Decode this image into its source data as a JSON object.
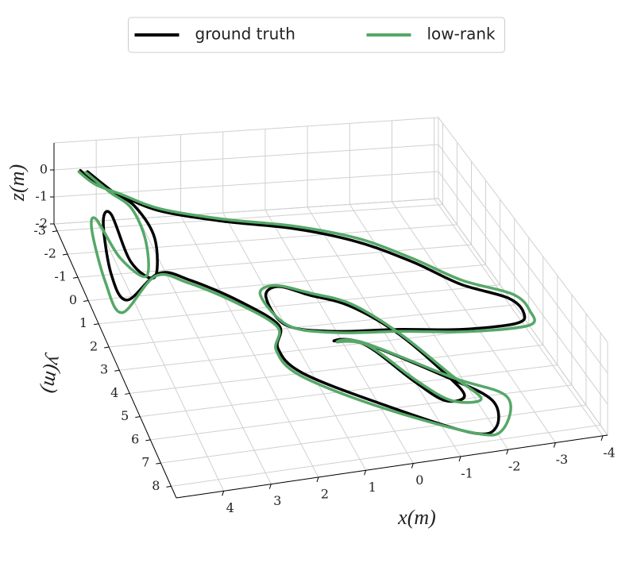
{
  "chart_data": {
    "type": "line3d",
    "x_label": "x(m)",
    "y_label": "y(m)",
    "z_label": "z(m)",
    "xlim": [
      5.0,
      -4.1
    ],
    "ylim": [
      -3.3,
      8.5
    ],
    "zlim": [
      -2,
      1
    ],
    "xticks": [
      4,
      3,
      2,
      1,
      0,
      -1,
      -2,
      -3,
      -4
    ],
    "yticks": [
      -3,
      -2,
      -1,
      0,
      1,
      2,
      3,
      4,
      5,
      6,
      7,
      8
    ],
    "zticks": [
      -2,
      -1,
      0
    ],
    "grid": true,
    "legend": "upper center",
    "series": [
      {
        "name": "ground truth",
        "color": "#000000",
        "x": [
          4.4,
          4.18,
          3.74,
          3.0,
          1.69,
          0.19,
          -1.06,
          -2.02,
          -2.78,
          -3.61,
          -3.75,
          -3.46,
          -2.25,
          -0.93,
          0.41,
          1.35,
          1.5,
          1.14,
          0.54,
          -0.19,
          -0.9,
          -1.45,
          -1.61,
          -1.16,
          -0.73,
          -0.11,
          0.5,
          -0.06,
          -1.42,
          -2.12,
          -1.89,
          -1.32,
          0.16,
          1.47,
          1.74,
          1.5,
          2.12,
          2.96,
          3.59,
          4.52,
          4.64,
          4.36,
          4.11,
          4.1,
          3.72,
          3.36,
          3.5,
          3.89,
          4.25
        ],
        "y": [
          -3.2,
          -2.69,
          -2.18,
          -1.47,
          -0.89,
          -0.37,
          0.36,
          1.33,
          2.38,
          3.11,
          3.77,
          4.13,
          4.1,
          3.83,
          3.63,
          3.19,
          2.09,
          1.75,
          2.19,
          2.75,
          3.96,
          5.68,
          6.61,
          6.68,
          5.79,
          4.25,
          3.98,
          4.16,
          5.79,
          6.92,
          7.96,
          7.97,
          6.49,
          5.0,
          4.02,
          3.17,
          2.12,
          1.2,
          0.83,
          1.68,
          0.68,
          -1.21,
          -1.47,
          0.32,
          0.96,
          -0.46,
          -1.7,
          -2.36,
          -3.13
        ],
        "z": [
          0,
          -0.05,
          -0.12,
          -0.23,
          -0.32,
          -0.39,
          -0.5,
          -0.65,
          -0.81,
          -0.92,
          -1.02,
          -1.07,
          -1.07,
          -1.02,
          -0.99,
          -0.93,
          -0.76,
          -0.71,
          -0.78,
          -0.86,
          -1.04,
          -1.3,
          -1.44,
          -1.45,
          -1.32,
          -1.09,
          -1.05,
          -1.07,
          -1.32,
          -1.49,
          -1.64,
          -1.64,
          -1.42,
          -1.2,
          -1.05,
          -0.93,
          -0.77,
          -0.63,
          -0.57,
          -0.7,
          -0.55,
          -0.27,
          -0.23,
          -0.5,
          -0.59,
          -0.38,
          -0.2,
          -0.1,
          0
        ]
      },
      {
        "name": "low-rank",
        "color": "#55a868",
        "x": [
          4.45,
          4.2,
          3.7,
          2.95,
          1.65,
          0.15,
          -1.1,
          -2.05,
          -2.85,
          -3.75,
          -3.9,
          -3.7,
          -2.35,
          -0.98,
          0.35,
          1.3,
          1.6,
          1.2,
          0.5,
          -0.25,
          -0.95,
          -1.55,
          -1.9,
          -1.3,
          -0.8,
          -0.15,
          0.45,
          -0.1,
          -1.55,
          -2.45,
          -2.0,
          -1.4,
          0.25,
          1.55,
          1.8,
          1.55,
          2.2,
          3.05,
          3.7,
          4.75,
          4.85,
          4.7,
          4.5,
          4.3,
          3.9,
          3.6,
          3.6,
          3.95,
          4.3
        ],
        "y": [
          -3.15,
          -2.6,
          -2.15,
          -1.5,
          -0.95,
          -0.45,
          0.22,
          1.18,
          2.22,
          2.98,
          3.7,
          4.3,
          4.25,
          3.95,
          3.72,
          3.25,
          2.0,
          1.7,
          2.12,
          2.7,
          4.05,
          5.8,
          6.85,
          6.75,
          5.85,
          4.3,
          4.05,
          4.2,
          5.9,
          6.85,
          8.1,
          8.05,
          6.6,
          5.1,
          4.1,
          3.25,
          2.2,
          1.3,
          0.95,
          2.2,
          1.0,
          -0.9,
          -1.3,
          0.1,
          0.9,
          -0.3,
          -1.6,
          -2.3,
          -3.1
        ],
        "z": [
          0,
          -0.04,
          -0.1,
          -0.2,
          -0.3,
          -0.37,
          -0.48,
          -0.63,
          -0.79,
          -0.9,
          -1.0,
          -1.06,
          -1.06,
          -1.01,
          -0.98,
          -0.92,
          -0.75,
          -0.7,
          -0.77,
          -0.85,
          -1.03,
          -1.29,
          -1.43,
          -1.44,
          -1.31,
          -1.08,
          -1.04,
          -1.06,
          -1.31,
          -1.48,
          -1.62,
          -1.63,
          -1.41,
          -1.19,
          -1.04,
          -0.92,
          -0.76,
          -0.62,
          -0.56,
          -0.69,
          -0.54,
          -0.26,
          -0.22,
          -0.49,
          -0.58,
          -0.37,
          -0.19,
          -0.09,
          0
        ]
      }
    ]
  }
}
